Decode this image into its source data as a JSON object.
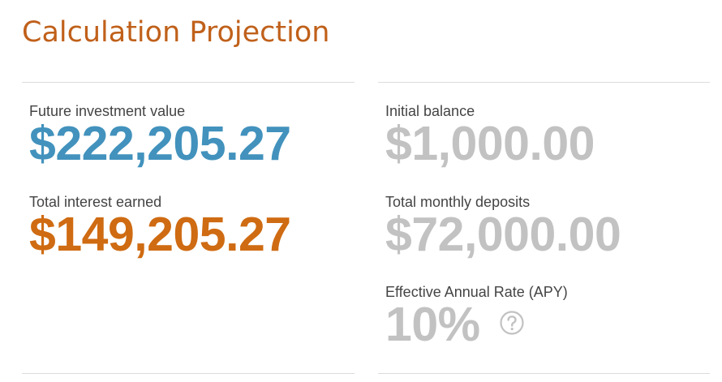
{
  "page": {
    "title": "Calculation Projection"
  },
  "left_panel": {
    "future_value": {
      "label": "Future investment value",
      "value": "$222,205.27"
    },
    "total_interest": {
      "label": "Total interest earned",
      "value": "$149,205.27"
    }
  },
  "right_panel": {
    "initial_balance": {
      "label": "Initial balance",
      "value": "$1,000.00"
    },
    "monthly_deposits": {
      "label": "Total monthly deposits",
      "value": "$72,000.00"
    },
    "apy": {
      "label": "Effective Annual Rate (APY)",
      "value": "10%",
      "help_icon": "question-circle-icon"
    }
  },
  "colors": {
    "title": "#c0601a",
    "future_value": "#4292bd",
    "interest": "#cf6b12",
    "muted_value": "#c2c2c2",
    "label": "#444444",
    "divider": "#dcdcdc"
  }
}
